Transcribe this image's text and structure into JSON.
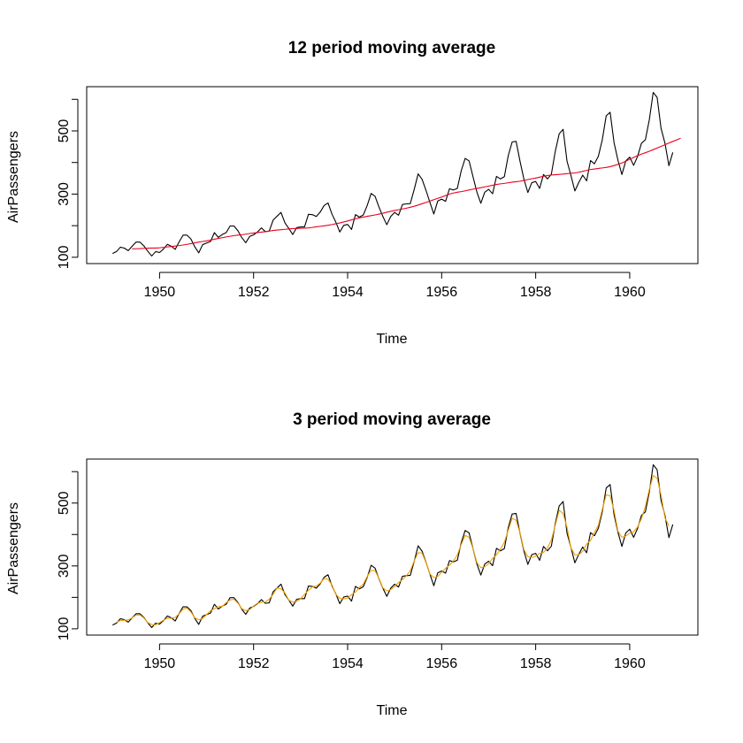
{
  "chart_data": [
    {
      "type": "line",
      "title": "12 period moving average",
      "xlabel": "Time",
      "ylabel": "AirPassengers",
      "xlim": [
        1948.45,
        1961.45
      ],
      "ylim": [
        80,
        640
      ],
      "xticks": [
        1950,
        1952,
        1954,
        1956,
        1958,
        1960
      ],
      "xtick_labels": [
        "1950",
        "1952",
        "1954",
        "1956",
        "1958",
        "1960"
      ],
      "yticks": [
        100,
        200,
        300,
        400,
        500,
        600
      ],
      "ytick_labels": [
        "100",
        "",
        "300",
        "",
        "500",
        ""
      ],
      "grid": false,
      "series": [
        {
          "role": "raw",
          "color": "#000000",
          "start": 1949.0,
          "step": 0.083333,
          "values": [
            112,
            118,
            132,
            129,
            121,
            135,
            148,
            148,
            136,
            119,
            104,
            118,
            115,
            126,
            141,
            135,
            125,
            149,
            170,
            170,
            158,
            133,
            114,
            140,
            145,
            150,
            178,
            163,
            172,
            178,
            199,
            199,
            184,
            162,
            146,
            166,
            171,
            180,
            193,
            181,
            183,
            218,
            230,
            242,
            209,
            191,
            172,
            194,
            196,
            196,
            236,
            235,
            229,
            243,
            264,
            272,
            237,
            211,
            180,
            201,
            204,
            188,
            235,
            227,
            234,
            264,
            302,
            293,
            259,
            229,
            203,
            229,
            242,
            233,
            267,
            269,
            270,
            315,
            364,
            347,
            312,
            274,
            237,
            278,
            284,
            277,
            317,
            313,
            318,
            374,
            413,
            405,
            355,
            306,
            271,
            306,
            315,
            301,
            356,
            348,
            355,
            422,
            465,
            467,
            404,
            347,
            305,
            336,
            340,
            318,
            362,
            348,
            363,
            435,
            491,
            505,
            404,
            359,
            310,
            337,
            360,
            342,
            406,
            396,
            420,
            472,
            548,
            559,
            463,
            407,
            362,
            405,
            417,
            391,
            419,
            461,
            472,
            535,
            622,
            606,
            508,
            461,
            390,
            432
          ]
        },
        {
          "role": "moving-average",
          "color": "#e8001c",
          "start": 1949.4167,
          "step": 0.083333,
          "values": [
            126.7,
            126.9,
            127.4,
            128.3,
            128.8,
            129.2,
            129.2,
            130.0,
            131.3,
            132.8,
            134.1,
            135.5,
            137.0,
            138.8,
            140.9,
            143.2,
            145.7,
            148.1,
            150.0,
            152.0,
            154.3,
            157.1,
            159.6,
            161.9,
            164.3,
            166.5,
            168.5,
            170.1,
            171.4,
            173.1,
            175.2,
            176.8,
            178.1,
            179.5,
            181.0,
            182.9,
            184.9,
            186.3,
            187.4,
            188.5,
            189.8,
            190.8,
            191.2,
            191.7,
            192.1,
            193.0,
            194.4,
            196.3,
            198.0,
            199.5,
            201.3,
            203.5,
            206.1,
            208.7,
            211.7,
            215.0,
            218.5,
            221.7,
            224.7,
            227.2,
            229.6,
            231.8,
            234.0,
            236.6,
            239.4,
            242.5,
            245.3,
            248.1,
            250.5,
            252.9,
            255.3,
            258.3,
            261.5,
            265.3,
            269.5,
            273.6,
            277.8,
            282.2,
            286.4,
            290.7,
            295.4,
            300.1,
            303.3,
            305.9,
            307.9,
            310.3,
            313.0,
            315.5,
            317.8,
            320.2,
            322.9,
            325.3,
            327.9,
            330.5,
            332.3,
            333.8,
            335.8,
            337.8,
            339.2,
            340.8,
            343.3,
            346.0,
            348.5,
            350.7,
            353.5,
            356.3,
            358.8,
            360.4,
            361.3,
            362.3,
            363.3,
            364.7,
            366.0,
            367.0,
            369.1,
            372.1,
            375.0,
            377.8,
            379.5,
            381.1,
            382.7,
            384.4,
            386.8,
            390.3,
            394.1,
            398.5,
            404.0,
            410.2,
            416.1,
            421.8,
            426.6,
            430.9,
            435.6,
            440.7,
            445.9,
            451.1,
            456.3,
            461.5,
            466.6,
            471.7,
            476.9
          ]
        }
      ]
    },
    {
      "type": "line",
      "title": "3 period moving average",
      "xlabel": "Time",
      "ylabel": "AirPassengers",
      "xlim": [
        1948.45,
        1961.45
      ],
      "ylim": [
        80,
        640
      ],
      "xticks": [
        1950,
        1952,
        1954,
        1956,
        1958,
        1960
      ],
      "xtick_labels": [
        "1950",
        "1952",
        "1954",
        "1956",
        "1958",
        "1960"
      ],
      "yticks": [
        100,
        200,
        300,
        400,
        500,
        600
      ],
      "ytick_labels": [
        "100",
        "",
        "300",
        "",
        "500",
        ""
      ],
      "grid": false,
      "series": [
        {
          "role": "raw",
          "color": "#000000",
          "start": 1949.0,
          "step": 0.083333,
          "same_as_raw_of_first_chart": true
        },
        {
          "role": "moving-average-3",
          "color": "#f0a000",
          "start": 1949.0833,
          "step": 0.083333,
          "window": 3
        }
      ]
    }
  ]
}
